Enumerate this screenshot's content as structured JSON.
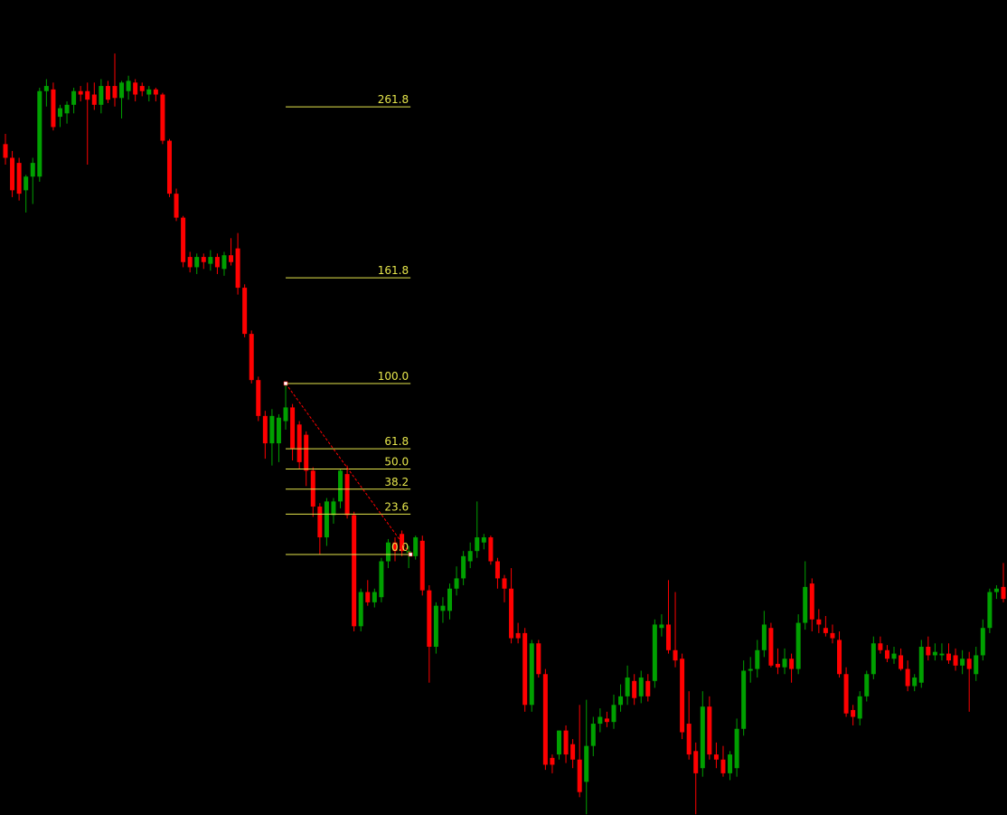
{
  "chart_data": {
    "type": "candlestick",
    "ylim": [
      -152.4,
      324.3
    ],
    "up_color": "#00a000",
    "down_color": "#ff0000",
    "fib_color": "#e6e64c",
    "fib_levels": [
      261.8,
      161.8,
      {
        "value": 100,
        "label": "100.0"
      },
      61.8,
      {
        "value": 50,
        "label": "50.0"
      },
      38.2,
      23.6,
      {
        "value": 0,
        "label": "0.0"
      }
    ],
    "ohlc": [
      [
        240,
        246,
        228,
        232
      ],
      [
        232,
        236,
        209,
        213
      ],
      [
        229,
        232,
        207,
        211
      ],
      [
        213,
        222,
        200,
        221
      ],
      [
        221,
        232,
        205,
        229
      ],
      [
        221,
        273,
        218,
        271
      ],
      [
        271,
        278,
        262,
        274
      ],
      [
        272,
        276,
        248,
        250
      ],
      [
        256,
        263,
        250,
        261
      ],
      [
        258,
        265,
        252,
        263
      ],
      [
        263,
        273,
        258,
        271
      ],
      [
        271,
        274,
        265,
        269
      ],
      [
        271,
        276,
        228,
        266
      ],
      [
        269,
        276,
        260,
        263
      ],
      [
        263,
        278,
        258,
        274
      ],
      [
        274,
        277,
        264,
        266
      ],
      [
        274,
        293,
        262,
        267
      ],
      [
        267,
        277,
        255,
        276
      ],
      [
        271,
        280,
        266,
        277
      ],
      [
        276,
        278,
        265,
        269
      ],
      [
        274,
        276,
        268,
        271
      ],
      [
        269,
        274,
        265,
        272
      ],
      [
        272,
        273,
        265,
        269
      ],
      [
        269,
        270,
        240,
        242
      ],
      [
        242,
        243,
        209,
        211
      ],
      [
        211,
        214,
        195,
        197
      ],
      [
        197,
        198,
        168,
        171
      ],
      [
        174,
        177,
        165,
        168
      ],
      [
        168,
        176,
        164,
        174
      ],
      [
        174,
        176,
        167,
        171
      ],
      [
        170,
        178,
        166,
        174
      ],
      [
        174,
        176,
        164,
        168
      ],
      [
        167,
        177,
        163,
        175
      ],
      [
        175,
        185,
        169,
        171
      ],
      [
        179,
        188,
        152,
        156
      ],
      [
        156,
        158,
        127,
        129
      ],
      [
        129,
        131,
        100,
        102
      ],
      [
        102,
        104,
        78,
        81
      ],
      [
        81,
        84,
        56,
        65
      ],
      [
        65,
        85,
        52,
        81
      ],
      [
        65,
        82,
        54,
        80
      ],
      [
        78,
        100,
        73,
        86
      ],
      [
        86,
        88,
        55,
        62
      ],
      [
        76,
        78,
        50,
        54
      ],
      [
        70,
        72,
        40,
        49
      ],
      [
        49,
        51,
        22,
        28
      ],
      [
        28,
        30,
        0,
        10
      ],
      [
        10,
        33,
        5,
        31
      ],
      [
        23,
        33,
        18,
        31
      ],
      [
        31,
        50,
        27,
        49
      ],
      [
        47,
        52,
        21,
        23
      ],
      [
        23,
        25,
        -45,
        -42
      ],
      [
        -42,
        -20,
        -45,
        -22
      ],
      [
        -22,
        -15,
        -30,
        -28
      ],
      [
        -28,
        -20,
        -31,
        -22
      ],
      [
        -25,
        -2,
        -28,
        -4
      ],
      [
        -4,
        9,
        -8,
        7
      ],
      [
        7,
        10,
        -4,
        2
      ],
      [
        12,
        14,
        -1,
        2
      ],
      [
        1,
        5,
        -8,
        2
      ],
      [
        -1,
        11,
        -3,
        10
      ],
      [
        8,
        11,
        -24,
        -21
      ],
      [
        -21,
        -18,
        -75,
        -54
      ],
      [
        -54,
        -28,
        -58,
        -30
      ],
      [
        -33,
        -25,
        -40,
        -30
      ],
      [
        -33,
        -17,
        -38,
        -20
      ],
      [
        -20,
        -7,
        -24,
        -14
      ],
      [
        -14,
        2,
        -18,
        -1
      ],
      [
        -4,
        7,
        -8,
        2
      ],
      [
        2,
        31,
        -2,
        10
      ],
      [
        7,
        12,
        3,
        10
      ],
      [
        10,
        11,
        -6,
        -4
      ],
      [
        -4,
        -2,
        -20,
        -14
      ],
      [
        -14,
        -12,
        -28,
        -20
      ],
      [
        -20,
        -8,
        -52,
        -49
      ],
      [
        -46,
        -40,
        -52,
        -49
      ],
      [
        -46,
        -43,
        -92,
        -88
      ],
      [
        -88,
        -50,
        -92,
        -52
      ],
      [
        -52,
        -50,
        -72,
        -70
      ],
      [
        -70,
        -67,
        -126,
        -123
      ],
      [
        -119,
        -117,
        -128,
        -123
      ],
      [
        -117,
        -103,
        -120,
        -103
      ],
      [
        -103,
        -100,
        -122,
        -117
      ],
      [
        -111,
        -108,
        -125,
        -120
      ],
      [
        -120,
        -88,
        -142,
        -139
      ],
      [
        -133,
        -85,
        -152,
        -112
      ],
      [
        -112,
        -95,
        -118,
        -99
      ],
      [
        -99,
        -90,
        -104,
        -95
      ],
      [
        -96,
        -92,
        -101,
        -98
      ],
      [
        -98,
        -82,
        -102,
        -88
      ],
      [
        -88,
        -76,
        -92,
        -83
      ],
      [
        -83,
        -65,
        -88,
        -72
      ],
      [
        -74,
        -70,
        -88,
        -84
      ],
      [
        -83,
        -68,
        -87,
        -72
      ],
      [
        -74,
        -70,
        -86,
        -83
      ],
      [
        -74,
        -38,
        -78,
        -41
      ],
      [
        -43,
        -35,
        -48,
        -41
      ],
      [
        -41,
        -15,
        -58,
        -56
      ],
      [
        -56,
        -22,
        -66,
        -62
      ],
      [
        -61,
        -58,
        -108,
        -104
      ],
      [
        -99,
        -80,
        -120,
        -117
      ],
      [
        -115,
        -110,
        -152,
        -128
      ],
      [
        -125,
        -80,
        -130,
        -89
      ],
      [
        -89,
        -83,
        -120,
        -117
      ],
      [
        -117,
        -110,
        -125,
        -120
      ],
      [
        -120,
        -112,
        -130,
        -128
      ],
      [
        -128,
        -115,
        -132,
        -117
      ],
      [
        -125,
        -96,
        -130,
        -102
      ],
      [
        -102,
        -62,
        -106,
        -68
      ],
      [
        -68,
        -60,
        -75,
        -67
      ],
      [
        -67,
        -50,
        -72,
        -56
      ],
      [
        -56,
        -33,
        -60,
        -41
      ],
      [
        -43,
        -40,
        -66,
        -65
      ],
      [
        -64,
        -55,
        -70,
        -66
      ],
      [
        -66,
        -55,
        -70,
        -61
      ],
      [
        -61,
        -58,
        -75,
        -67
      ],
      [
        -67,
        -35,
        -70,
        -40
      ],
      [
        -40,
        -4,
        -44,
        -19
      ],
      [
        -17,
        -14,
        -45,
        -38
      ],
      [
        -38,
        -32,
        -46,
        -41
      ],
      [
        -43,
        -36,
        -48,
        -46
      ],
      [
        -46,
        -41,
        -52,
        -49
      ],
      [
        -50,
        -45,
        -72,
        -70
      ],
      [
        -70,
        -66,
        -95,
        -93
      ],
      [
        -91,
        -88,
        -100,
        -95
      ],
      [
        -96,
        -80,
        -100,
        -83
      ],
      [
        -83,
        -68,
        -86,
        -70
      ],
      [
        -70,
        -48,
        -73,
        -52
      ],
      [
        -52,
        -48,
        -58,
        -56
      ],
      [
        -56,
        -53,
        -63,
        -61
      ],
      [
        -61,
        -54,
        -64,
        -58
      ],
      [
        -59,
        -55,
        -68,
        -67
      ],
      [
        -67,
        -62,
        -80,
        -77
      ],
      [
        -77,
        -70,
        -80,
        -72
      ],
      [
        -75,
        -50,
        -78,
        -54
      ],
      [
        -54,
        -48,
        -62,
        -59
      ],
      [
        -59,
        -52,
        -62,
        -57
      ],
      [
        -59,
        -52,
        -62,
        -58
      ],
      [
        -58,
        -52,
        -64,
        -62
      ],
      [
        -59,
        -55,
        -68,
        -65
      ],
      [
        -65,
        -56,
        -70,
        -61
      ],
      [
        -61,
        -57,
        -92,
        -67
      ],
      [
        -70,
        -54,
        -74,
        -59
      ],
      [
        -59,
        -38,
        -62,
        -43
      ],
      [
        -43,
        -20,
        -46,
        -22
      ],
      [
        -22,
        -18,
        -26,
        -20
      ],
      [
        -19,
        -5,
        -28,
        -26
      ]
    ]
  }
}
